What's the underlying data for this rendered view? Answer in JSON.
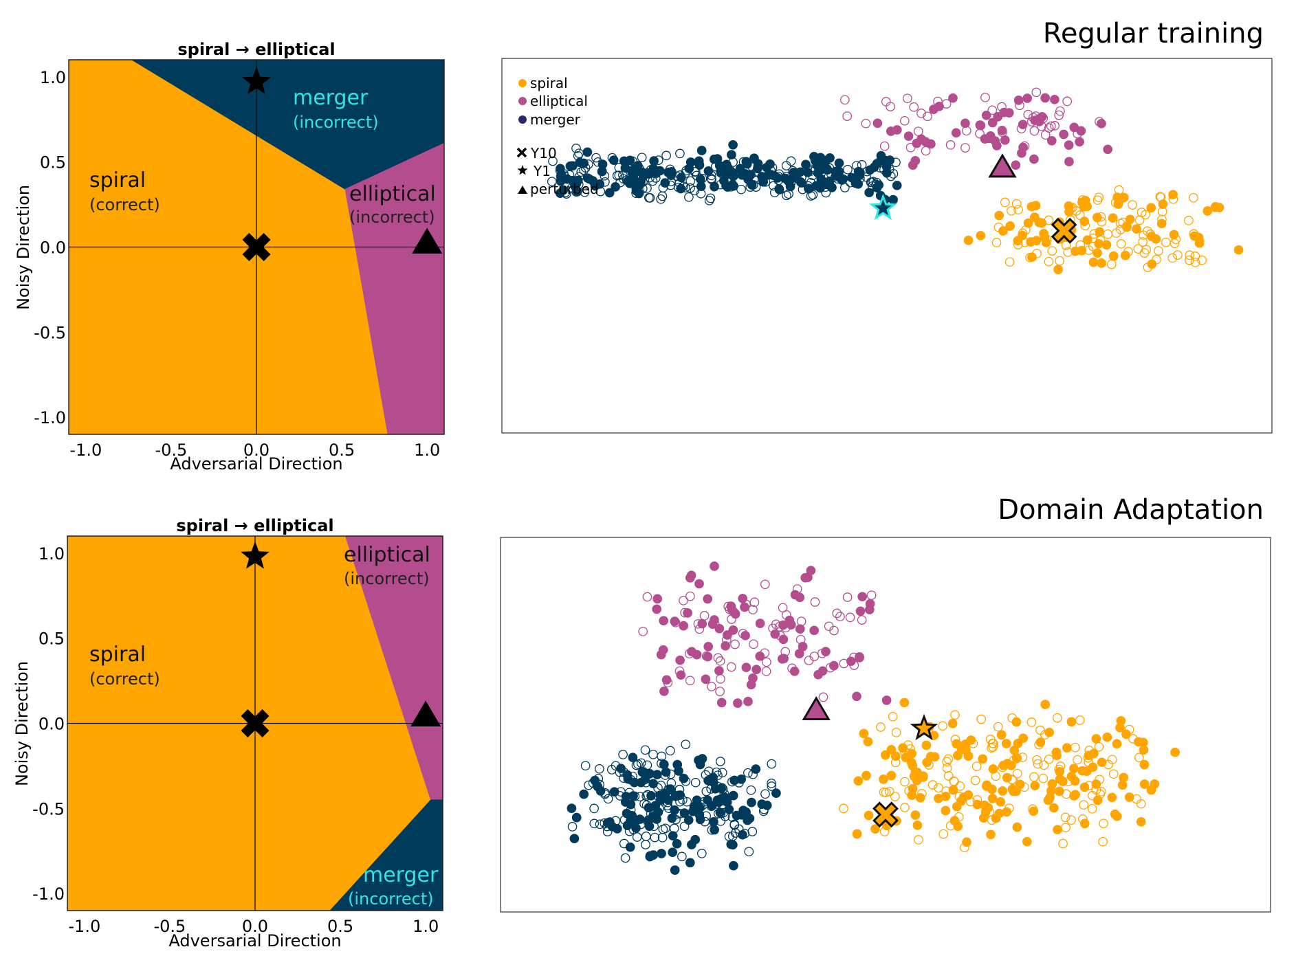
{
  "colors": {
    "spiral": "#FFA500",
    "elliptical": "#B44D8E",
    "merger": "#003B5C",
    "merger_text": "#2EE6E6"
  },
  "chart_data": [
    {
      "type": "heatmap",
      "title": "spiral → elliptical",
      "xlabel": "Adversarial Direction",
      "ylabel": "Noisy Direction",
      "xlim": [
        -1.1,
        1.1
      ],
      "ylim": [
        -1.1,
        1.1
      ],
      "xticks": [
        "-1.0",
        "-0.5",
        "0.0",
        "0.5",
        "1.0"
      ],
      "yticks": [
        "1.0",
        "0.5",
        "0.0",
        "-0.5",
        "-1.0"
      ],
      "regions": [
        {
          "label": "spiral",
          "sublabel": "(correct)",
          "class": "spiral",
          "polygon": [
            [
              -1.1,
              -1.1
            ],
            [
              0.77,
              -1.1
            ],
            [
              0.58,
              0.0
            ],
            [
              0.52,
              0.34
            ],
            [
              -0.73,
              1.1
            ],
            [
              -1.1,
              1.1
            ]
          ]
        },
        {
          "label": "merger",
          "sublabel": "(incorrect)",
          "class": "merger",
          "polygon": [
            [
              -0.73,
              1.1
            ],
            [
              1.1,
              1.1
            ],
            [
              1.1,
              0.61
            ],
            [
              0.52,
              0.34
            ]
          ]
        },
        {
          "label": "elliptical",
          "sublabel": "(incorrect)",
          "class": "elliptical",
          "polygon": [
            [
              0.52,
              0.34
            ],
            [
              1.1,
              0.61
            ],
            [
              1.1,
              -1.1
            ],
            [
              0.77,
              -1.1
            ],
            [
              0.58,
              0.0
            ]
          ]
        }
      ],
      "markers": [
        {
          "symbol": "star",
          "x": 0.0,
          "y": 0.97
        },
        {
          "symbol": "cross",
          "x": 0.0,
          "y": 0.0
        },
        {
          "symbol": "triangle",
          "x": 1.0,
          "y": 0.03
        }
      ]
    },
    {
      "type": "scatter",
      "title": "Regular training",
      "legend_position": "top-left",
      "legend": [
        {
          "symbol": "dot",
          "class": "spiral",
          "label": "spiral"
        },
        {
          "symbol": "dot",
          "class": "elliptical",
          "label": "elliptical"
        },
        {
          "symbol": "dot",
          "class": "merger",
          "label": "merger"
        },
        {
          "symbol": "cross",
          "label": "Y10"
        },
        {
          "symbol": "star",
          "label": "Y1"
        },
        {
          "symbol": "triangle",
          "label": "perturbed"
        }
      ],
      "clusters": [
        {
          "class": "merger",
          "n": 340,
          "seed": 11,
          "x": [
            4,
            53
          ],
          "y": [
            21,
            41
          ],
          "spread": [
            0.9,
            0.2
          ]
        },
        {
          "class": "elliptical",
          "n": 95,
          "seed": 23,
          "x": [
            42,
            86
          ],
          "y": [
            4,
            31
          ],
          "spread": [
            0.6,
            0.5
          ]
        },
        {
          "class": "spiral",
          "n": 150,
          "seed": 37,
          "x": [
            56,
            98
          ],
          "y": [
            32,
            60
          ],
          "spread": [
            0.6,
            0.6
          ]
        }
      ],
      "markers": [
        {
          "symbol": "star",
          "class": "merger",
          "x": 49.5,
          "y": 40
        },
        {
          "symbol": "cross",
          "class": "spiral",
          "x": 73,
          "y": 46
        },
        {
          "symbol": "triangle",
          "class": "elliptical",
          "x": 65,
          "y": 29
        }
      ]
    },
    {
      "type": "heatmap",
      "title": "spiral → elliptical",
      "xlabel": "Adversarial Direction",
      "ylabel": "Noisy Direction",
      "xlim": [
        -1.1,
        1.1
      ],
      "ylim": [
        -1.1,
        1.1
      ],
      "xticks": [
        "-1.0",
        "-0.5",
        "0.0",
        "0.5",
        "1.0"
      ],
      "yticks": [
        "1.0",
        "0.5",
        "0.0",
        "-0.5",
        "-1.0"
      ],
      "regions": [
        {
          "label": "spiral",
          "sublabel": "(correct)",
          "class": "spiral",
          "polygon": [
            [
              -1.1,
              -1.1
            ],
            [
              0.44,
              -1.1
            ],
            [
              1.03,
              -0.45
            ],
            [
              0.53,
              1.1
            ],
            [
              -1.1,
              1.1
            ]
          ]
        },
        {
          "label": "elliptical",
          "sublabel": "(incorrect)",
          "class": "elliptical",
          "polygon": [
            [
              0.53,
              1.1
            ],
            [
              1.1,
              1.1
            ],
            [
              1.1,
              -0.45
            ],
            [
              1.03,
              -0.45
            ]
          ]
        },
        {
          "label": "merger",
          "sublabel": "(incorrect)",
          "class": "merger",
          "polygon": [
            [
              0.44,
              -1.1
            ],
            [
              1.1,
              -1.1
            ],
            [
              1.1,
              -0.45
            ],
            [
              1.03,
              -0.45
            ]
          ]
        }
      ],
      "markers": [
        {
          "symbol": "star",
          "x": 0.0,
          "y": 0.98
        },
        {
          "symbol": "cross",
          "x": 0.0,
          "y": 0.0
        },
        {
          "symbol": "triangle",
          "x": 1.0,
          "y": 0.05
        }
      ]
    },
    {
      "type": "scatter",
      "title": "Domain Adaptation",
      "clusters": [
        {
          "class": "elliptical",
          "n": 140,
          "seed": 53,
          "x": [
            13,
            55
          ],
          "y": [
            4,
            50
          ],
          "spread": [
            0.6,
            0.6
          ]
        },
        {
          "class": "spiral",
          "n": 260,
          "seed": 61,
          "x": [
            38,
            92
          ],
          "y": [
            38,
            88
          ],
          "spread": [
            0.6,
            0.45
          ]
        },
        {
          "class": "merger",
          "n": 260,
          "seed": 79,
          "x": [
            5,
            40
          ],
          "y": [
            51,
            92
          ],
          "spread": [
            0.6,
            0.5
          ]
        }
      ],
      "markers": [
        {
          "symbol": "triangle",
          "class": "elliptical",
          "x": 41,
          "y": 46
        },
        {
          "symbol": "star",
          "class": "spiral",
          "x": 55,
          "y": 51
        },
        {
          "symbol": "cross",
          "class": "spiral",
          "x": 50,
          "y": 74
        }
      ]
    }
  ]
}
